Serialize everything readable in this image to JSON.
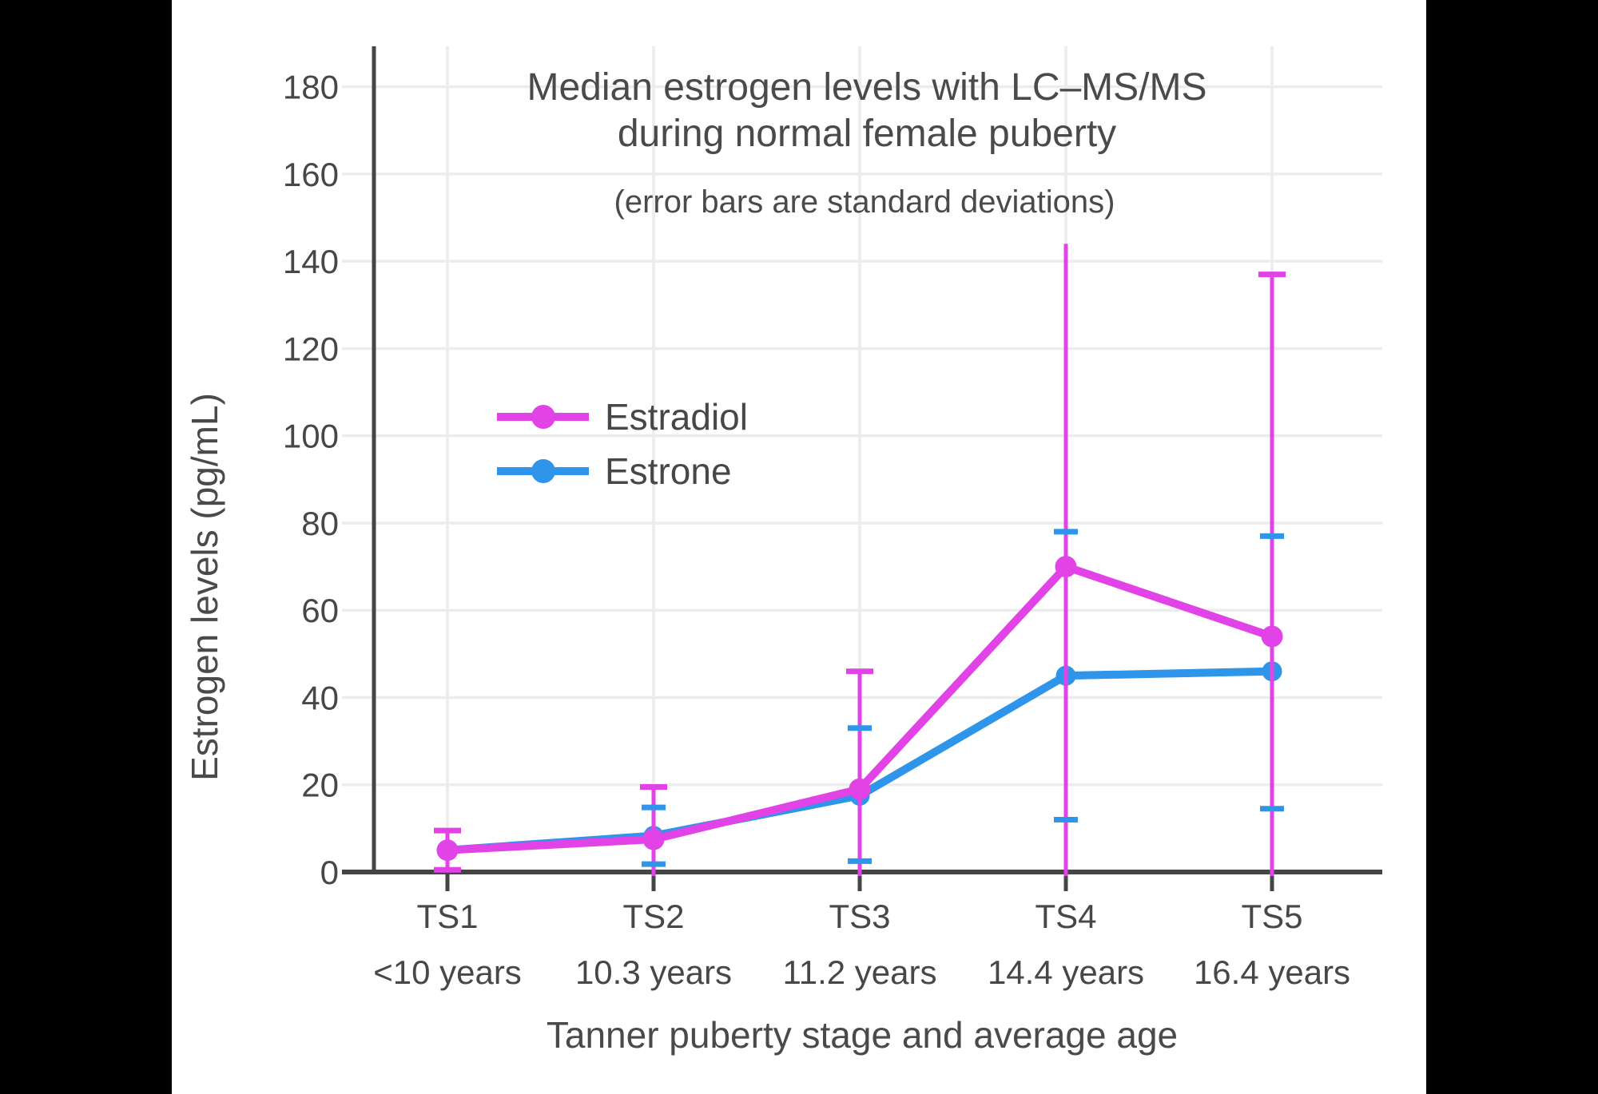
{
  "figure": {
    "matte_color": "#000000",
    "canvas_color": "#ffffff",
    "axis_color": "#454545",
    "grid_color": "#ececec",
    "text_color": "#4a4a4a"
  },
  "chart_data": {
    "type": "line",
    "title": "Median estrogen levels with LC–MS/MS",
    "title_line2": "during normal female puberty",
    "subtitle": "(error bars are standard deviations)",
    "xlabel": "Tanner puberty stage and average age",
    "ylabel": "Estrogen levels (pg/mL)",
    "ylim": [
      0,
      189
    ],
    "yticks": [
      0,
      20,
      40,
      60,
      80,
      100,
      120,
      140,
      160,
      180
    ],
    "grid": true,
    "legend": {
      "position": "inside-upper-left",
      "entries": [
        "Estradiol",
        "Estrone"
      ]
    },
    "categories": [
      {
        "stage": "TS1",
        "age": "<10 years"
      },
      {
        "stage": "TS2",
        "age": "10.3 years"
      },
      {
        "stage": "TS3",
        "age": "11.2 years"
      },
      {
        "stage": "TS4",
        "age": "14.4 years"
      },
      {
        "stage": "TS5",
        "age": "16.4 years"
      }
    ],
    "series": [
      {
        "name": "Estradiol",
        "color": "#e143e7",
        "values": [
          5,
          7.5,
          19,
          70,
          54
        ],
        "error_upper": [
          9.5,
          19.5,
          46,
          144,
          137
        ],
        "error_lower": [
          0.5,
          null,
          null,
          null,
          null
        ],
        "upper_cap": [
          true,
          true,
          true,
          false,
          true
        ],
        "lower_cap": [
          true,
          false,
          false,
          false,
          false
        ],
        "error_note": "null lower bound = error bar clipped at 0 axis"
      },
      {
        "name": "Estrone",
        "color": "#2e95ea",
        "values": [
          5,
          8.3,
          17.5,
          45,
          46
        ],
        "error_upper": [
          null,
          14.8,
          33,
          78,
          77
        ],
        "error_lower": [
          null,
          1.8,
          2.5,
          12,
          14.5
        ],
        "upper_cap": [
          false,
          true,
          true,
          true,
          true
        ],
        "lower_cap": [
          false,
          true,
          true,
          true,
          true
        ],
        "error_note": "no error bar shown at TS1"
      }
    ]
  }
}
